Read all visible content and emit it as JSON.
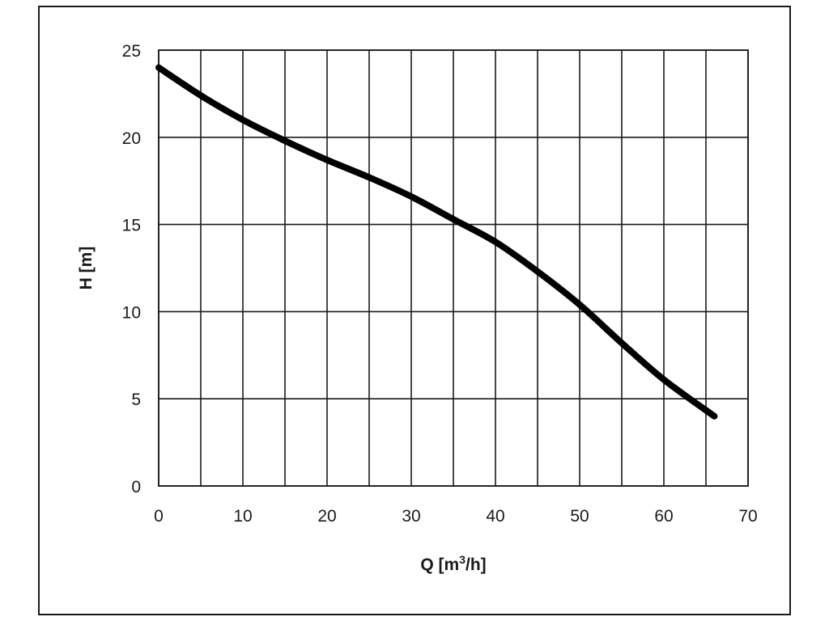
{
  "chart_data": {
    "type": "line",
    "title": "",
    "xlabel": "Q [m",
    "xlabel_sup": "3",
    "xlabel_tail": "/h]",
    "ylabel": "H [m]",
    "xlim": [
      0,
      70
    ],
    "ylim": [
      0,
      25
    ],
    "x_ticks": [
      0,
      10,
      20,
      30,
      40,
      50,
      60,
      70
    ],
    "y_ticks": [
      0,
      5,
      10,
      15,
      20,
      25
    ],
    "x_grid": [
      0,
      5,
      10,
      15,
      20,
      25,
      30,
      35,
      40,
      45,
      50,
      55,
      60,
      65,
      70
    ],
    "y_grid": [
      0,
      5,
      10,
      15,
      20,
      25
    ],
    "grid": true,
    "series": [
      {
        "x": [
          0,
          5,
          10,
          15,
          20,
          25,
          30,
          35,
          40,
          45,
          50,
          55,
          60,
          66
        ],
        "y": [
          24,
          22.4,
          21.0,
          19.8,
          18.7,
          17.7,
          16.6,
          15.3,
          14.0,
          12.3,
          10.4,
          8.2,
          6.1,
          4.0
        ]
      }
    ],
    "colors": {
      "line": "#000000",
      "grid": "#1a1a1a"
    }
  }
}
